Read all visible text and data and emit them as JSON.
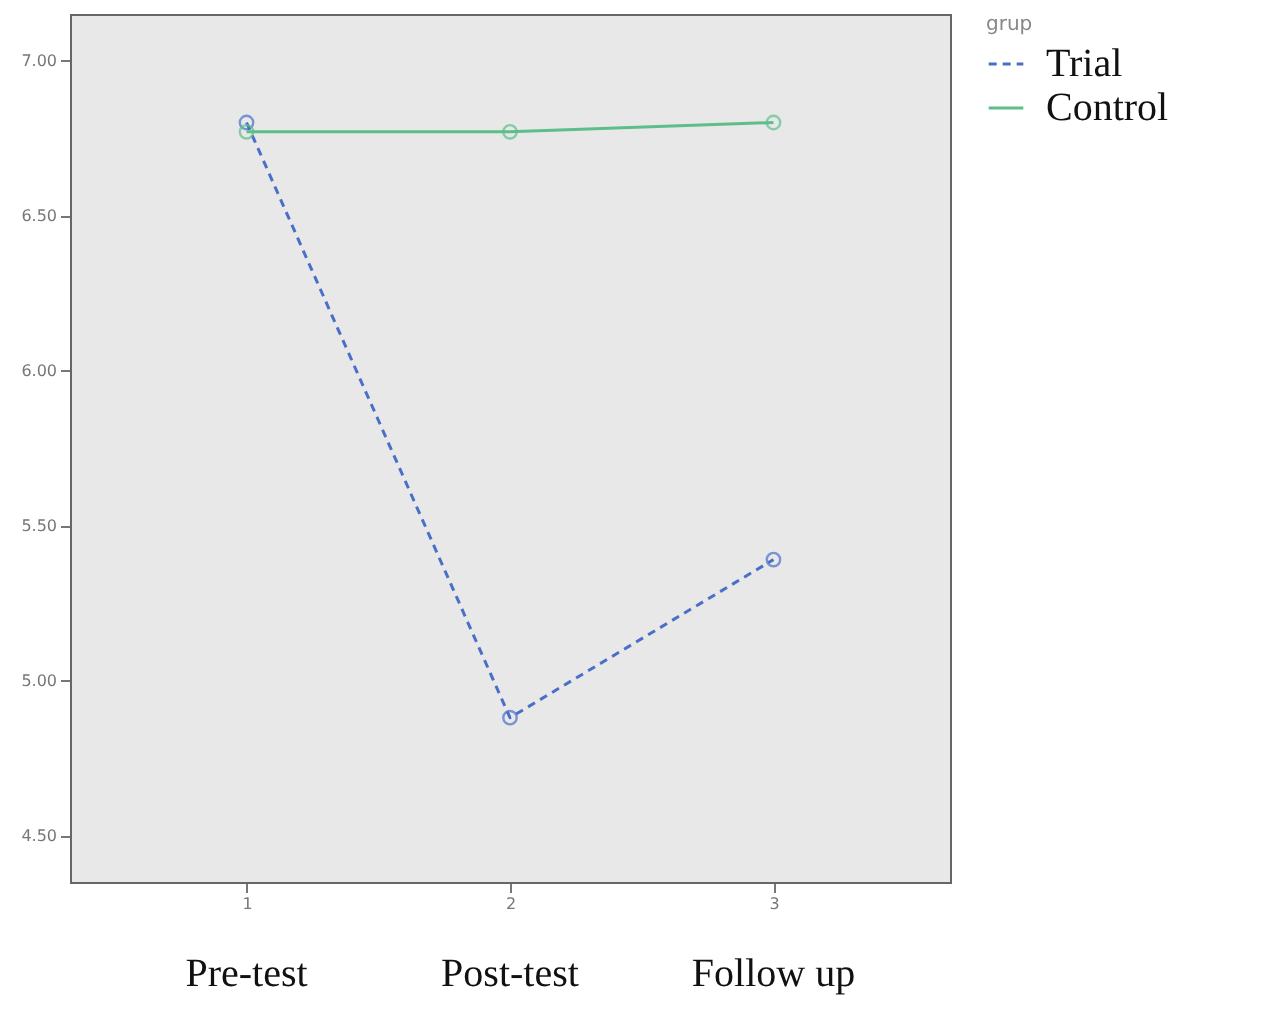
{
  "chart_data": {
    "type": "line",
    "legend_title": "grup",
    "x": [
      1,
      2,
      3
    ],
    "series": [
      {
        "name": "Trial",
        "color": "#4a6fc9",
        "line_style": "dashed",
        "values": [
          6.8,
          4.88,
          5.39
        ]
      },
      {
        "name": "Control",
        "color": "#5cbf8a",
        "line_style": "solid",
        "values": [
          6.77,
          6.77,
          6.8
        ]
      }
    ],
    "xlim": [
      0.33,
      3.67
    ],
    "xticks": [
      1,
      2,
      3
    ],
    "ylim": [
      4.35,
      7.15
    ],
    "yticks": [
      {
        "value": 4.5,
        "label": "4.50"
      },
      {
        "value": 5,
        "label": "5.00"
      },
      {
        "value": 5.5,
        "label": "5.50"
      },
      {
        "value": 6,
        "label": "6.00"
      },
      {
        "value": 6.5,
        "label": "6.50"
      },
      {
        "value": 7,
        "label": "7.00"
      }
    ],
    "annotations": [
      "Pre-test",
      "Post-test",
      "Follow up"
    ],
    "marker": "circle",
    "grid": false,
    "legend": "top right"
  }
}
